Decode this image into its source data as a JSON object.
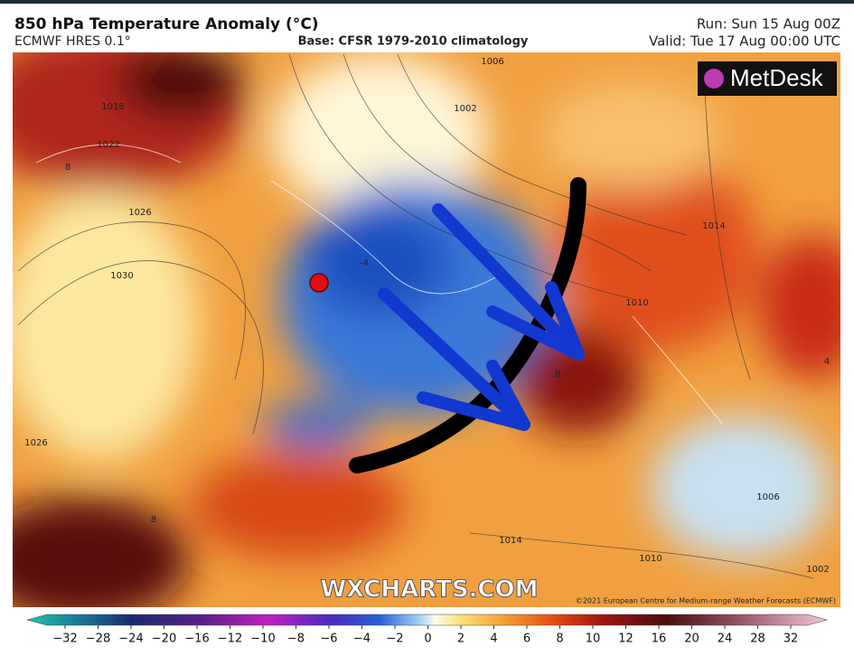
{
  "header": {
    "title": "850 hPa Temperature Anomaly (°C)",
    "model": "ECMWF HRES 0.1°",
    "base": "Base: CFSR 1979-2010 climatology",
    "run": "Run: Sun 15 Aug 00Z",
    "valid": "Valid: Tue 17 Aug 00:00 UTC"
  },
  "map": {
    "logo": "MetDesk",
    "watermark": "WXCHARTS.COM",
    "credit": "©2021 European Centre for Medium-range Weather Forecasts (ECMWF)",
    "contour_labels": [
      "1006",
      "1002",
      "1018",
      "1022",
      "1026",
      "1030",
      "1014",
      "1010",
      "1026",
      "1014",
      "1010",
      "1006",
      "1002",
      "8",
      "8",
      "4",
      "-4",
      "8"
    ]
  },
  "colorbar": {
    "ticks": [
      "−32",
      "−28",
      "−24",
      "−20",
      "−16",
      "−12",
      "−10",
      "−8",
      "−6",
      "−4",
      "−2",
      "0",
      "2",
      "4",
      "6",
      "8",
      "10",
      "12",
      "16",
      "20",
      "24",
      "28",
      "32"
    ]
  }
}
